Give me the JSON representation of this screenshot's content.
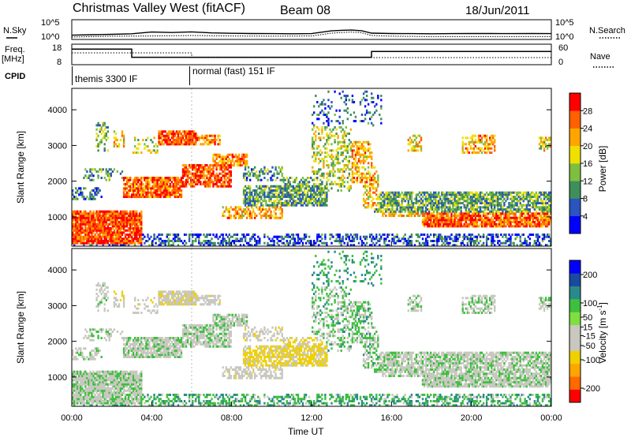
{
  "header": {
    "title": "Christmas Valley West (fitACF)",
    "beam": "Beam 08",
    "date": "18/Jun/2011"
  },
  "left_labels": {
    "nsky": "N.Sky",
    "freq_line1": "Freq.",
    "freq_line2": "[MHz]",
    "cpid": "CPID"
  },
  "right_labels": {
    "nsearch": "N.Search",
    "nave": "Nave"
  },
  "cpid_segments": [
    {
      "label": "themis 3300 IF",
      "start_hour": 0,
      "end_hour": 6
    },
    {
      "label": "normal (fast) 151 IF",
      "start_hour": 6,
      "end_hour": 24
    }
  ],
  "colors": {
    "power": [
      "#0000ff",
      "#2a54c0",
      "#3f8f5a",
      "#7fbf3f",
      "#f0e000",
      "#ffa500",
      "#ff6000",
      "#ff0000"
    ],
    "velocity": [
      "#ff0000",
      "#ff6a00",
      "#ffa500",
      "#f0d000",
      "#c8c8c0",
      "#c8c8c0",
      "#7fdf3f",
      "#3fbf3f",
      "#2a8a8a",
      "#1a4aa0",
      "#0000ff"
    ],
    "ground": "#c8c8c0"
  },
  "chart_data": [
    {
      "type": "line",
      "name": "noise-panel",
      "series": [
        {
          "name": "N.Sky",
          "style": "solid",
          "x": [
            0,
            1,
            2,
            3,
            4,
            5,
            6,
            7,
            8,
            9,
            10,
            11,
            12,
            13,
            13.5,
            14,
            14.5,
            15,
            16,
            17,
            18,
            19,
            20,
            21,
            22,
            23,
            24
          ],
          "values": [
            10,
            14,
            18,
            25,
            80,
            60,
            90,
            45,
            35,
            30,
            28,
            25,
            28,
            180,
            250,
            300,
            200,
            40,
            30,
            28,
            25,
            28,
            30,
            30,
            28,
            30,
            28
          ]
        },
        {
          "name": "N.Search",
          "style": "dotted",
          "x": [
            0,
            2,
            4,
            6,
            8,
            10,
            12,
            13,
            13.5,
            14,
            14.5,
            15,
            16,
            18,
            20,
            22,
            24
          ],
          "values": [
            3,
            5,
            6,
            8,
            6,
            5,
            6,
            40,
            60,
            80,
            50,
            8,
            5,
            4,
            4,
            4,
            4
          ]
        }
      ],
      "y_ticks_left": [
        "10^5",
        "10^0"
      ],
      "y_ticks_right": [
        "10^5",
        "10^0"
      ],
      "yscale": "log",
      "ylim": [
        1,
        100000
      ]
    },
    {
      "type": "line",
      "name": "frequency-panel",
      "series": [
        {
          "name": "Freq.",
          "style": "solid",
          "x": [
            0,
            3,
            3,
            15,
            15,
            24
          ],
          "values": [
            15.8,
            15.8,
            11.5,
            11.5,
            14.6,
            14.6
          ]
        },
        {
          "name": "Nave",
          "style": "dotted",
          "x": [
            0,
            6,
            6,
            24
          ],
          "values": [
            35,
            35,
            20,
            20
          ]
        }
      ],
      "y_ticks_left": [
        "18",
        "8"
      ],
      "y_ticks_right": [
        "60",
        "0"
      ],
      "ylim": [
        8,
        18
      ],
      "y2lim": [
        0,
        60
      ]
    },
    {
      "type": "heatmap",
      "name": "power-panel",
      "ylabel": "Slant Range [km]",
      "y_ticks": [
        1000,
        2000,
        3000,
        4000
      ],
      "ylim": [
        180,
        4600
      ],
      "colorbar_label": "Power [dB]",
      "colorbar_ticks": [
        4,
        8,
        12,
        16,
        20,
        24,
        28
      ],
      "colorbar_range": [
        0,
        32
      ]
    },
    {
      "type": "heatmap",
      "name": "velocity-panel",
      "ylabel": "Slant Range [km]",
      "y_ticks": [
        1000,
        2000,
        3000,
        4000
      ],
      "ylim": [
        180,
        4600
      ],
      "colorbar_label": "Velocity [m s^-1]",
      "colorbar_label_text": "Velocity [m s",
      "colorbar_label_sup": "-1",
      "colorbar_label_close": "]",
      "colorbar_ticks": [
        200,
        100,
        50,
        15,
        -15,
        -50,
        -100,
        -200
      ],
      "colorbar_range": [
        -250,
        250
      ]
    }
  ],
  "time_axis": {
    "xlabel": "Time UT",
    "xlim": [
      0,
      24
    ],
    "ticks": [
      {
        "hour": 0,
        "label": "00:00"
      },
      {
        "hour": 4,
        "label": "04:00"
      },
      {
        "hour": 8,
        "label": "08:00"
      },
      {
        "hour": 12,
        "label": "12:00"
      },
      {
        "hour": 16,
        "label": "16:00"
      },
      {
        "hour": 20,
        "label": "20:00"
      },
      {
        "hour": 24,
        "label": "00:00"
      }
    ]
  },
  "scatter_regions": [
    {
      "t": [
        0,
        3.5
      ],
      "r": [
        200,
        1150
      ],
      "p": 27,
      "v": 0,
      "density": 0.9
    },
    {
      "t": [
        0,
        1.5
      ],
      "r": [
        1450,
        1800
      ],
      "p": 8,
      "v": 0,
      "density": 0.5
    },
    {
      "t": [
        1.2,
        1.8
      ],
      "r": [
        2800,
        3600
      ],
      "p": 14,
      "v": -10,
      "density": 0.35
    },
    {
      "t": [
        2.0,
        2.6
      ],
      "r": [
        2900,
        3400
      ],
      "p": 18,
      "v": -30,
      "density": 0.45
    },
    {
      "t": [
        0.5,
        2.5
      ],
      "r": [
        1950,
        2350
      ],
      "p": 10,
      "v": 0,
      "density": 0.3
    },
    {
      "t": [
        2.5,
        5.5
      ],
      "r": [
        1500,
        2100
      ],
      "p": 26,
      "v": 0,
      "density": 0.85
    },
    {
      "t": [
        5.5,
        8.0
      ],
      "r": [
        1800,
        2450
      ],
      "p": 27,
      "v": 0,
      "density": 0.8
    },
    {
      "t": [
        7.0,
        8.8
      ],
      "r": [
        2400,
        2750
      ],
      "p": 25,
      "v": 0,
      "density": 0.7
    },
    {
      "t": [
        4.3,
        6.2
      ],
      "r": [
        2950,
        3400
      ],
      "p": 27,
      "v": -30,
      "density": 0.85
    },
    {
      "t": [
        6.2,
        7.4
      ],
      "r": [
        3000,
        3250
      ],
      "p": 25,
      "v": -20,
      "density": 0.6
    },
    {
      "t": [
        3.0,
        4.3
      ],
      "r": [
        2750,
        3200
      ],
      "p": 15,
      "v": -20,
      "density": 0.25
    },
    {
      "t": [
        7.5,
        10.5
      ],
      "r": [
        900,
        1250
      ],
      "p": 22,
      "v": -20,
      "density": 0.55
    },
    {
      "t": [
        8.5,
        12.8
      ],
      "r": [
        1250,
        1850
      ],
      "p": 11,
      "v": -60,
      "density": 0.75
    },
    {
      "t": [
        10.5,
        12.5
      ],
      "r": [
        1500,
        2100
      ],
      "p": 12,
      "v": -60,
      "density": 0.5
    },
    {
      "t": [
        8.5,
        10.5
      ],
      "r": [
        2000,
        2400
      ],
      "p": 10,
      "v": -30,
      "density": 0.4
    },
    {
      "t": [
        12.0,
        14.0
      ],
      "r": [
        1700,
        3500
      ],
      "p": 16,
      "v": 20,
      "density": 0.35
    },
    {
      "t": [
        13.5,
        15.0
      ],
      "r": [
        1900,
        3100
      ],
      "p": 22,
      "v": 20,
      "density": 0.55
    },
    {
      "t": [
        14.5,
        15.3
      ],
      "r": [
        1200,
        2400
      ],
      "p": 21,
      "v": 20,
      "density": 0.5
    },
    {
      "t": [
        15.0,
        24.0
      ],
      "r": [
        1100,
        1700
      ],
      "p": 12,
      "v": 0,
      "density": 0.75
    },
    {
      "t": [
        15.5,
        17.5
      ],
      "r": [
        1000,
        1300
      ],
      "p": 20,
      "v": 0,
      "density": 0.6
    },
    {
      "t": [
        17.5,
        24.0
      ],
      "r": [
        700,
        1250
      ],
      "p": 26,
      "v": 0,
      "density": 0.85
    },
    {
      "t": [
        16.8,
        17.5
      ],
      "r": [
        2800,
        3300
      ],
      "p": 20,
      "v": 0,
      "density": 0.55
    },
    {
      "t": [
        19.5,
        21.2
      ],
      "r": [
        2750,
        3300
      ],
      "p": 22,
      "v": 0,
      "density": 0.55
    },
    {
      "t": [
        23.3,
        24.0
      ],
      "r": [
        2800,
        3200
      ],
      "p": 18,
      "v": 0,
      "density": 0.55
    },
    {
      "t": [
        0,
        24.0
      ],
      "r": [
        180,
        500
      ],
      "p": 6,
      "v": 40,
      "density": 0.45
    },
    {
      "t": [
        12.0,
        15.5
      ],
      "r": [
        3500,
        4500
      ],
      "p": 6,
      "v": 50,
      "density": 0.15
    }
  ]
}
